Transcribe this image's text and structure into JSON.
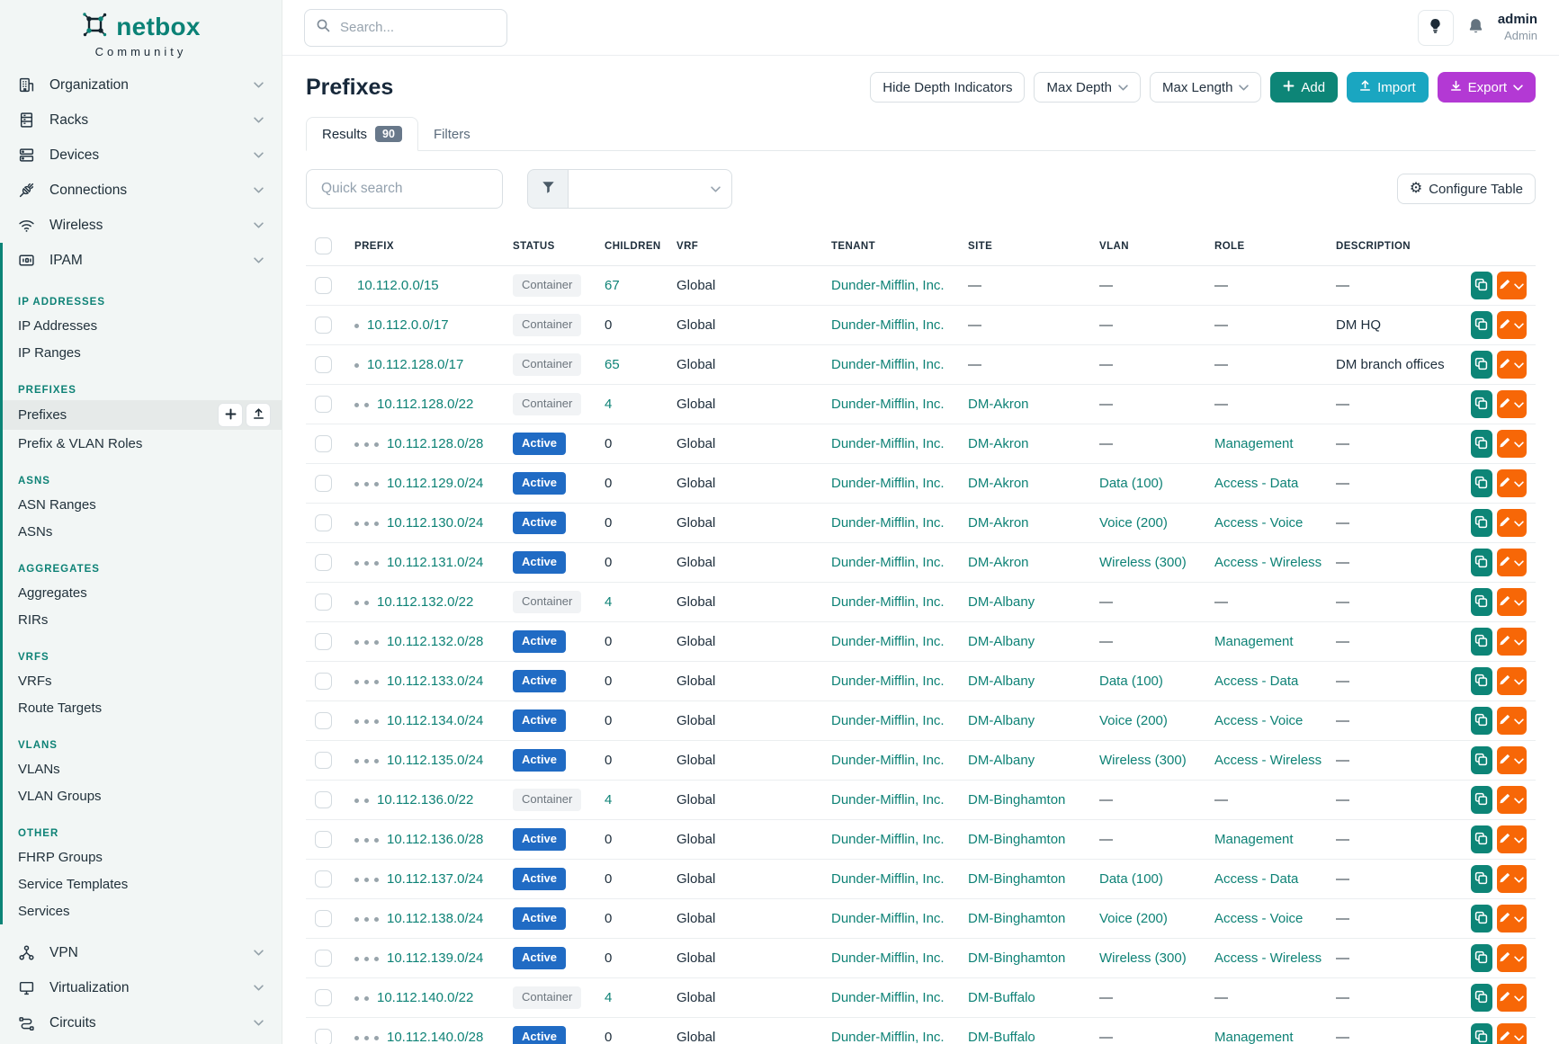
{
  "brand": {
    "name": "netbox",
    "subtitle": "Community"
  },
  "topbar": {
    "search_placeholder": "Search...",
    "user_name": "admin",
    "user_role": "Admin"
  },
  "sidebar": {
    "main_top": [
      {
        "label": "Organization",
        "icon": "building-icon"
      },
      {
        "label": "Racks",
        "icon": "rack-icon"
      },
      {
        "label": "Devices",
        "icon": "devices-icon"
      },
      {
        "label": "Connections",
        "icon": "plug-icon"
      },
      {
        "label": "Wireless",
        "icon": "wifi-icon"
      }
    ],
    "ipam": {
      "label": "IPAM",
      "icon": "ipam-icon",
      "sections": [
        {
          "header": "IP ADDRESSES",
          "items": [
            {
              "label": "IP Addresses"
            },
            {
              "label": "IP Ranges"
            }
          ]
        },
        {
          "header": "PREFIXES",
          "items": [
            {
              "label": "Prefixes",
              "active": true
            },
            {
              "label": "Prefix & VLAN Roles"
            }
          ]
        },
        {
          "header": "ASNS",
          "items": [
            {
              "label": "ASN Ranges"
            },
            {
              "label": "ASNs"
            }
          ]
        },
        {
          "header": "AGGREGATES",
          "items": [
            {
              "label": "Aggregates"
            },
            {
              "label": "RIRs"
            }
          ]
        },
        {
          "header": "VRFS",
          "items": [
            {
              "label": "VRFs"
            },
            {
              "label": "Route Targets"
            }
          ]
        },
        {
          "header": "VLANS",
          "items": [
            {
              "label": "VLANs"
            },
            {
              "label": "VLAN Groups"
            }
          ]
        },
        {
          "header": "OTHER",
          "items": [
            {
              "label": "FHRP Groups"
            },
            {
              "label": "Service Templates"
            },
            {
              "label": "Services"
            }
          ]
        }
      ]
    },
    "main_bottom": [
      {
        "label": "VPN",
        "icon": "vpn-icon"
      },
      {
        "label": "Virtualization",
        "icon": "monitor-icon"
      },
      {
        "label": "Circuits",
        "icon": "circuits-icon"
      }
    ]
  },
  "page": {
    "title": "Prefixes",
    "actions": {
      "hide_depth": "Hide Depth Indicators",
      "max_depth": "Max Depth",
      "max_length": "Max Length",
      "add": "Add",
      "import": "Import",
      "export": "Export"
    },
    "tabs": {
      "results_label": "Results",
      "results_count": "90",
      "filters_label": "Filters"
    },
    "toolbar": {
      "quick_search_placeholder": "Quick search",
      "configure_table": "Configure Table"
    }
  },
  "table": {
    "columns": [
      "PREFIX",
      "STATUS",
      "CHILDREN",
      "VRF",
      "TENANT",
      "SITE",
      "VLAN",
      "ROLE",
      "DESCRIPTION"
    ],
    "rows": [
      {
        "depth": 0,
        "prefix": "10.112.0.0/15",
        "status": "Container",
        "children": "67",
        "children_link": true,
        "vrf": "Global",
        "tenant": "Dunder-Mifflin, Inc.",
        "site": "—",
        "vlan": "—",
        "role": "—",
        "description": "—"
      },
      {
        "depth": 1,
        "prefix": "10.112.0.0/17",
        "status": "Container",
        "children": "0",
        "children_link": false,
        "vrf": "Global",
        "tenant": "Dunder-Mifflin, Inc.",
        "site": "—",
        "vlan": "—",
        "role": "—",
        "description": "DM HQ"
      },
      {
        "depth": 1,
        "prefix": "10.112.128.0/17",
        "status": "Container",
        "children": "65",
        "children_link": true,
        "vrf": "Global",
        "tenant": "Dunder-Mifflin, Inc.",
        "site": "—",
        "vlan": "—",
        "role": "—",
        "description": "DM branch offices"
      },
      {
        "depth": 2,
        "prefix": "10.112.128.0/22",
        "status": "Container",
        "children": "4",
        "children_link": true,
        "vrf": "Global",
        "tenant": "Dunder-Mifflin, Inc.",
        "site": "DM-Akron",
        "vlan": "—",
        "role": "—",
        "description": "—"
      },
      {
        "depth": 3,
        "prefix": "10.112.128.0/28",
        "status": "Active",
        "children": "0",
        "children_link": false,
        "vrf": "Global",
        "tenant": "Dunder-Mifflin, Inc.",
        "site": "DM-Akron",
        "vlan": "—",
        "role": "Management",
        "description": "—"
      },
      {
        "depth": 3,
        "prefix": "10.112.129.0/24",
        "status": "Active",
        "children": "0",
        "children_link": false,
        "vrf": "Global",
        "tenant": "Dunder-Mifflin, Inc.",
        "site": "DM-Akron",
        "vlan": "Data (100)",
        "role": "Access - Data",
        "description": "—"
      },
      {
        "depth": 3,
        "prefix": "10.112.130.0/24",
        "status": "Active",
        "children": "0",
        "children_link": false,
        "vrf": "Global",
        "tenant": "Dunder-Mifflin, Inc.",
        "site": "DM-Akron",
        "vlan": "Voice (200)",
        "role": "Access - Voice",
        "description": "—"
      },
      {
        "depth": 3,
        "prefix": "10.112.131.0/24",
        "status": "Active",
        "children": "0",
        "children_link": false,
        "vrf": "Global",
        "tenant": "Dunder-Mifflin, Inc.",
        "site": "DM-Akron",
        "vlan": "Wireless (300)",
        "role": "Access - Wireless",
        "description": "—"
      },
      {
        "depth": 2,
        "prefix": "10.112.132.0/22",
        "status": "Container",
        "children": "4",
        "children_link": true,
        "vrf": "Global",
        "tenant": "Dunder-Mifflin, Inc.",
        "site": "DM-Albany",
        "vlan": "—",
        "role": "—",
        "description": "—"
      },
      {
        "depth": 3,
        "prefix": "10.112.132.0/28",
        "status": "Active",
        "children": "0",
        "children_link": false,
        "vrf": "Global",
        "tenant": "Dunder-Mifflin, Inc.",
        "site": "DM-Albany",
        "vlan": "—",
        "role": "Management",
        "description": "—"
      },
      {
        "depth": 3,
        "prefix": "10.112.133.0/24",
        "status": "Active",
        "children": "0",
        "children_link": false,
        "vrf": "Global",
        "tenant": "Dunder-Mifflin, Inc.",
        "site": "DM-Albany",
        "vlan": "Data (100)",
        "role": "Access - Data",
        "description": "—"
      },
      {
        "depth": 3,
        "prefix": "10.112.134.0/24",
        "status": "Active",
        "children": "0",
        "children_link": false,
        "vrf": "Global",
        "tenant": "Dunder-Mifflin, Inc.",
        "site": "DM-Albany",
        "vlan": "Voice (200)",
        "role": "Access - Voice",
        "description": "—"
      },
      {
        "depth": 3,
        "prefix": "10.112.135.0/24",
        "status": "Active",
        "children": "0",
        "children_link": false,
        "vrf": "Global",
        "tenant": "Dunder-Mifflin, Inc.",
        "site": "DM-Albany",
        "vlan": "Wireless (300)",
        "role": "Access - Wireless",
        "description": "—"
      },
      {
        "depth": 2,
        "prefix": "10.112.136.0/22",
        "status": "Container",
        "children": "4",
        "children_link": true,
        "vrf": "Global",
        "tenant": "Dunder-Mifflin, Inc.",
        "site": "DM-Binghamton",
        "vlan": "—",
        "role": "—",
        "description": "—"
      },
      {
        "depth": 3,
        "prefix": "10.112.136.0/28",
        "status": "Active",
        "children": "0",
        "children_link": false,
        "vrf": "Global",
        "tenant": "Dunder-Mifflin, Inc.",
        "site": "DM-Binghamton",
        "vlan": "—",
        "role": "Management",
        "description": "—"
      },
      {
        "depth": 3,
        "prefix": "10.112.137.0/24",
        "status": "Active",
        "children": "0",
        "children_link": false,
        "vrf": "Global",
        "tenant": "Dunder-Mifflin, Inc.",
        "site": "DM-Binghamton",
        "vlan": "Data (100)",
        "role": "Access - Data",
        "description": "—"
      },
      {
        "depth": 3,
        "prefix": "10.112.138.0/24",
        "status": "Active",
        "children": "0",
        "children_link": false,
        "vrf": "Global",
        "tenant": "Dunder-Mifflin, Inc.",
        "site": "DM-Binghamton",
        "vlan": "Voice (200)",
        "role": "Access - Voice",
        "description": "—"
      },
      {
        "depth": 3,
        "prefix": "10.112.139.0/24",
        "status": "Active",
        "children": "0",
        "children_link": false,
        "vrf": "Global",
        "tenant": "Dunder-Mifflin, Inc.",
        "site": "DM-Binghamton",
        "vlan": "Wireless (300)",
        "role": "Access - Wireless",
        "description": "—"
      },
      {
        "depth": 2,
        "prefix": "10.112.140.0/22",
        "status": "Container",
        "children": "4",
        "children_link": true,
        "vrf": "Global",
        "tenant": "Dunder-Mifflin, Inc.",
        "site": "DM-Buffalo",
        "vlan": "—",
        "role": "—",
        "description": "—"
      },
      {
        "depth": 3,
        "prefix": "10.112.140.0/28",
        "status": "Active",
        "children": "0",
        "children_link": false,
        "vrf": "Global",
        "tenant": "Dunder-Mifflin, Inc.",
        "site": "DM-Buffalo",
        "vlan": "—",
        "role": "Management",
        "description": "—"
      }
    ]
  },
  "colors": {
    "link_teal": "#0e8276",
    "badge_active_bg": "#206bc4",
    "badge_container_bg": "#f1f3f5",
    "badge_container_text": "#6c757d",
    "btn_add_bg": "#0d8577",
    "btn_import_bg": "#1aa6c1",
    "btn_export_bg": "#b339d4",
    "btn_edit_bg": "#f76707",
    "sidebar_accent": "#0c8477"
  }
}
